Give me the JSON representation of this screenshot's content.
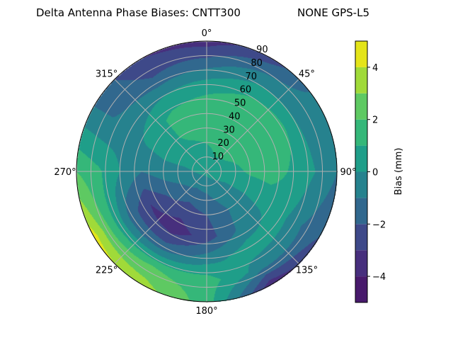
{
  "chart_data": {
    "type": "heatmap",
    "subtype": "polar-filled-contour",
    "title": "Delta Antenna Phase Biases: CNTT300",
    "title_right": "NONE GPS-L5",
    "theta_zero": "north",
    "theta_direction": "clockwise",
    "theta_ticks": [
      "0°",
      "45°",
      "90°",
      "135°",
      "180°",
      "225°",
      "270°",
      "315°"
    ],
    "theta_tick_values": [
      0,
      45,
      90,
      135,
      180,
      225,
      270,
      315
    ],
    "r_ticks": [
      "10",
      "20",
      "30",
      "40",
      "50",
      "60",
      "70",
      "80",
      "90"
    ],
    "r_tick_values": [
      10,
      20,
      30,
      40,
      50,
      60,
      70,
      80,
      90
    ],
    "rlim": [
      0,
      90
    ],
    "grid": true,
    "colormap": "viridis",
    "levels": [
      -5,
      -4,
      -3,
      -2,
      -1,
      0,
      1,
      2,
      3,
      4,
      5
    ],
    "level_colors": [
      "#481a6c",
      "#472f7d",
      "#3e4989",
      "#31688e",
      "#26828e",
      "#1f9e89",
      "#35b779",
      "#5ec962",
      "#a0da39",
      "#e4e419"
    ],
    "colorbar": {
      "label": "Bias (mm)",
      "ticks": [
        "−4",
        "−2",
        "0",
        "2",
        "4"
      ],
      "tick_values": [
        -4,
        -2,
        0,
        2,
        4
      ],
      "range": [
        -5,
        5
      ],
      "placement": "right"
    },
    "grid_azimuth": [
      0,
      30,
      60,
      90,
      120,
      150,
      180,
      210,
      240,
      270,
      300,
      330
    ],
    "grid_zenith": [
      0,
      15,
      30,
      45,
      60,
      75,
      90
    ],
    "values": [
      [
        0.3,
        0.3,
        0.3,
        0.3,
        0.3,
        0.3,
        0.3,
        0.3,
        0.3,
        0.3,
        0.3,
        0.3
      ],
      [
        0.8,
        1.2,
        1.0,
        0.5,
        0.0,
        -0.5,
        -1.0,
        -1.2,
        -0.8,
        -0.2,
        0.3,
        0.6
      ],
      [
        1.5,
        1.8,
        1.6,
        1.2,
        0.0,
        -1.0,
        -2.0,
        -2.5,
        -1.8,
        -0.5,
        0.5,
        1.2
      ],
      [
        1.6,
        1.8,
        1.8,
        1.5,
        0.2,
        -0.8,
        -2.5,
        -3.6,
        -3.0,
        -1.0,
        0.3,
        1.3
      ],
      [
        0.5,
        1.0,
        1.2,
        0.8,
        0.3,
        0.5,
        -0.5,
        -1.5,
        -1.5,
        0.0,
        -0.5,
        0.0
      ],
      [
        -1.5,
        -0.5,
        -0.5,
        0.0,
        -1.0,
        -0.5,
        1.5,
        2.0,
        1.5,
        1.2,
        -1.0,
        -2.0
      ],
      [
        -3.5,
        -2.5,
        -0.5,
        -1.0,
        -2.0,
        -3.8,
        1.5,
        3.5,
        4.5,
        2.0,
        -1.0,
        -3.0
      ]
    ]
  }
}
